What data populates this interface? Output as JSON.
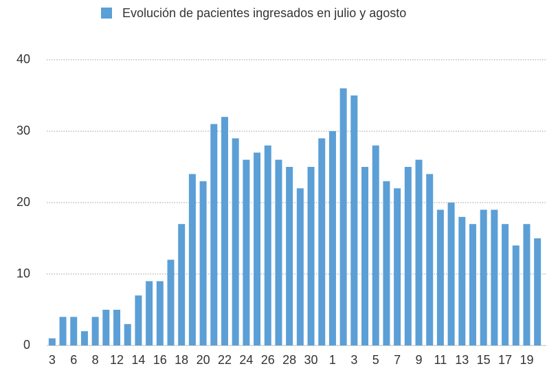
{
  "chart_data": {
    "type": "bar",
    "legend": "Evolución de pacientes ingresados en julio y agosto",
    "color": "#5b9fd6",
    "categories": [
      "3",
      null,
      "6",
      null,
      "8",
      null,
      "12",
      null,
      "14",
      null,
      "16",
      null,
      "18",
      null,
      "20",
      null,
      "22",
      null,
      "24",
      null,
      "26",
      null,
      "28",
      null,
      "30",
      null,
      "1",
      null,
      "3",
      null,
      "5",
      null,
      "7",
      null,
      "9",
      null,
      "11",
      null,
      "13",
      null,
      "15",
      null,
      "17",
      null,
      "19",
      null
    ],
    "values": [
      1,
      4,
      4,
      2,
      4,
      5,
      5,
      3,
      7,
      9,
      9,
      12,
      17,
      24,
      23,
      31,
      32,
      29,
      26,
      27,
      28,
      26,
      25,
      22,
      25,
      29,
      30,
      36,
      35,
      25,
      28,
      23,
      22,
      25,
      26,
      24,
      19,
      20,
      18,
      17,
      19,
      19,
      17,
      14,
      17,
      15
    ],
    "ylim": [
      0,
      40
    ],
    "yticks": [
      0,
      10,
      20,
      30,
      40
    ],
    "grid": true
  }
}
